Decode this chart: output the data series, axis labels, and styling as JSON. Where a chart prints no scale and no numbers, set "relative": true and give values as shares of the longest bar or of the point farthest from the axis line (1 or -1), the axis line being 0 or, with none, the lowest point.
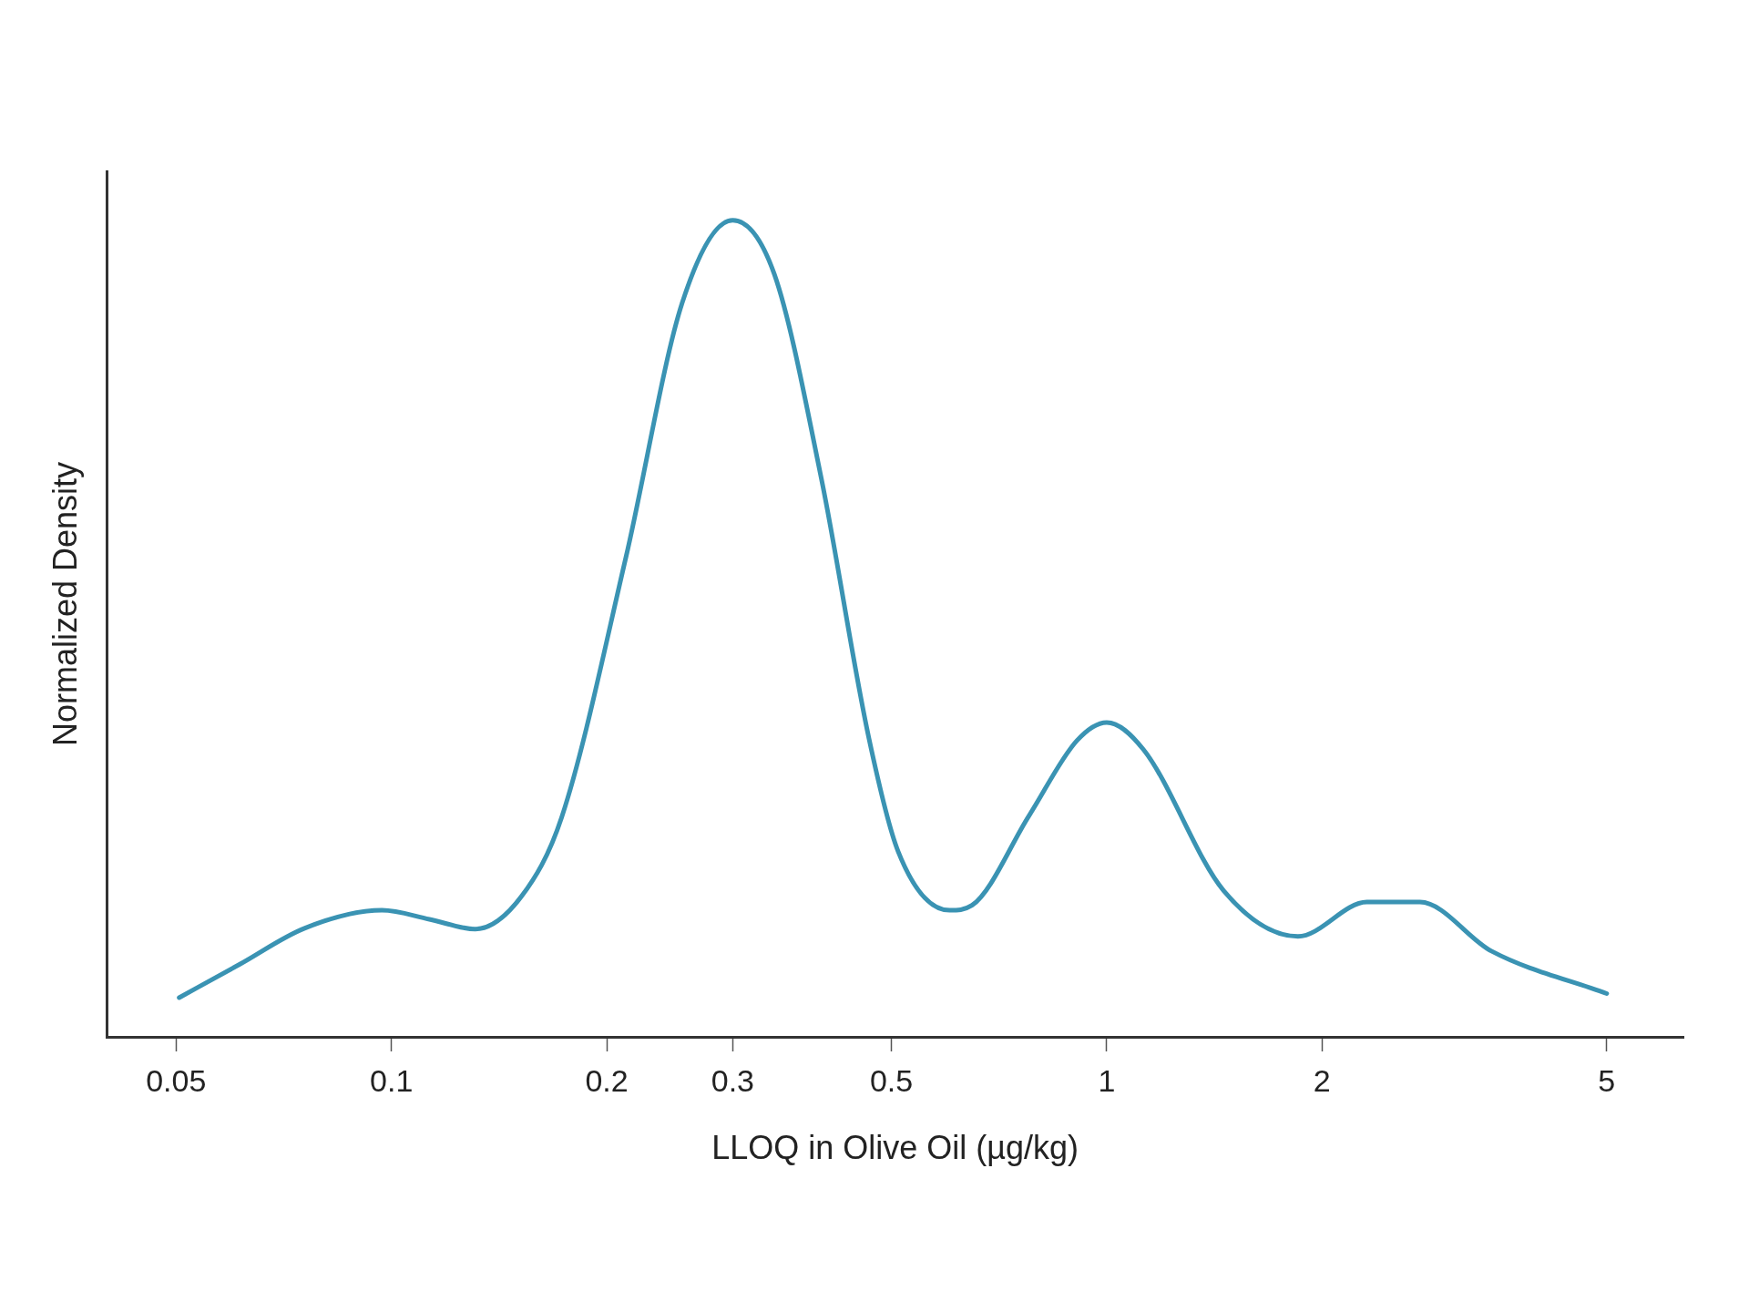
{
  "chart_data": {
    "type": "line",
    "xlabel": "LLOQ in Olive Oil (µg/kg)",
    "ylabel": "Normalized Density",
    "relative": true,
    "log": "x",
    "xlim": [
      0.04,
      6.4
    ],
    "xticks": [
      0.05,
      0.1,
      0.2,
      0.3,
      0.5,
      1,
      2,
      5
    ],
    "grid": false,
    "legend": false,
    "marker": "none",
    "line_style": "solid",
    "series": [
      {
        "color": "#3a93b3",
        "x": [
          0.0505,
          0.0614,
          0.0756,
          0.097,
          0.113,
          0.131,
          0.152,
          0.173,
          0.2127,
          0.255,
          0.3,
          0.343,
          0.399,
          0.465,
          0.511,
          0.603,
          0.648,
          0.779,
          0.909,
          1,
          1.125,
          1.457,
          1.851,
          2.31,
          2.74,
          3.45,
          5
        ],
        "values": [
          0.048,
          0.089,
          0.133,
          0.155,
          0.144,
          0.132,
          0.172,
          0.269,
          0.587,
          0.899,
          1,
          0.934,
          0.684,
          0.366,
          0.227,
          0.155,
          0.161,
          0.271,
          0.363,
          0.385,
          0.352,
          0.179,
          0.123,
          0.165,
          0.165,
          0.105,
          0.053
        ]
      }
    ]
  }
}
